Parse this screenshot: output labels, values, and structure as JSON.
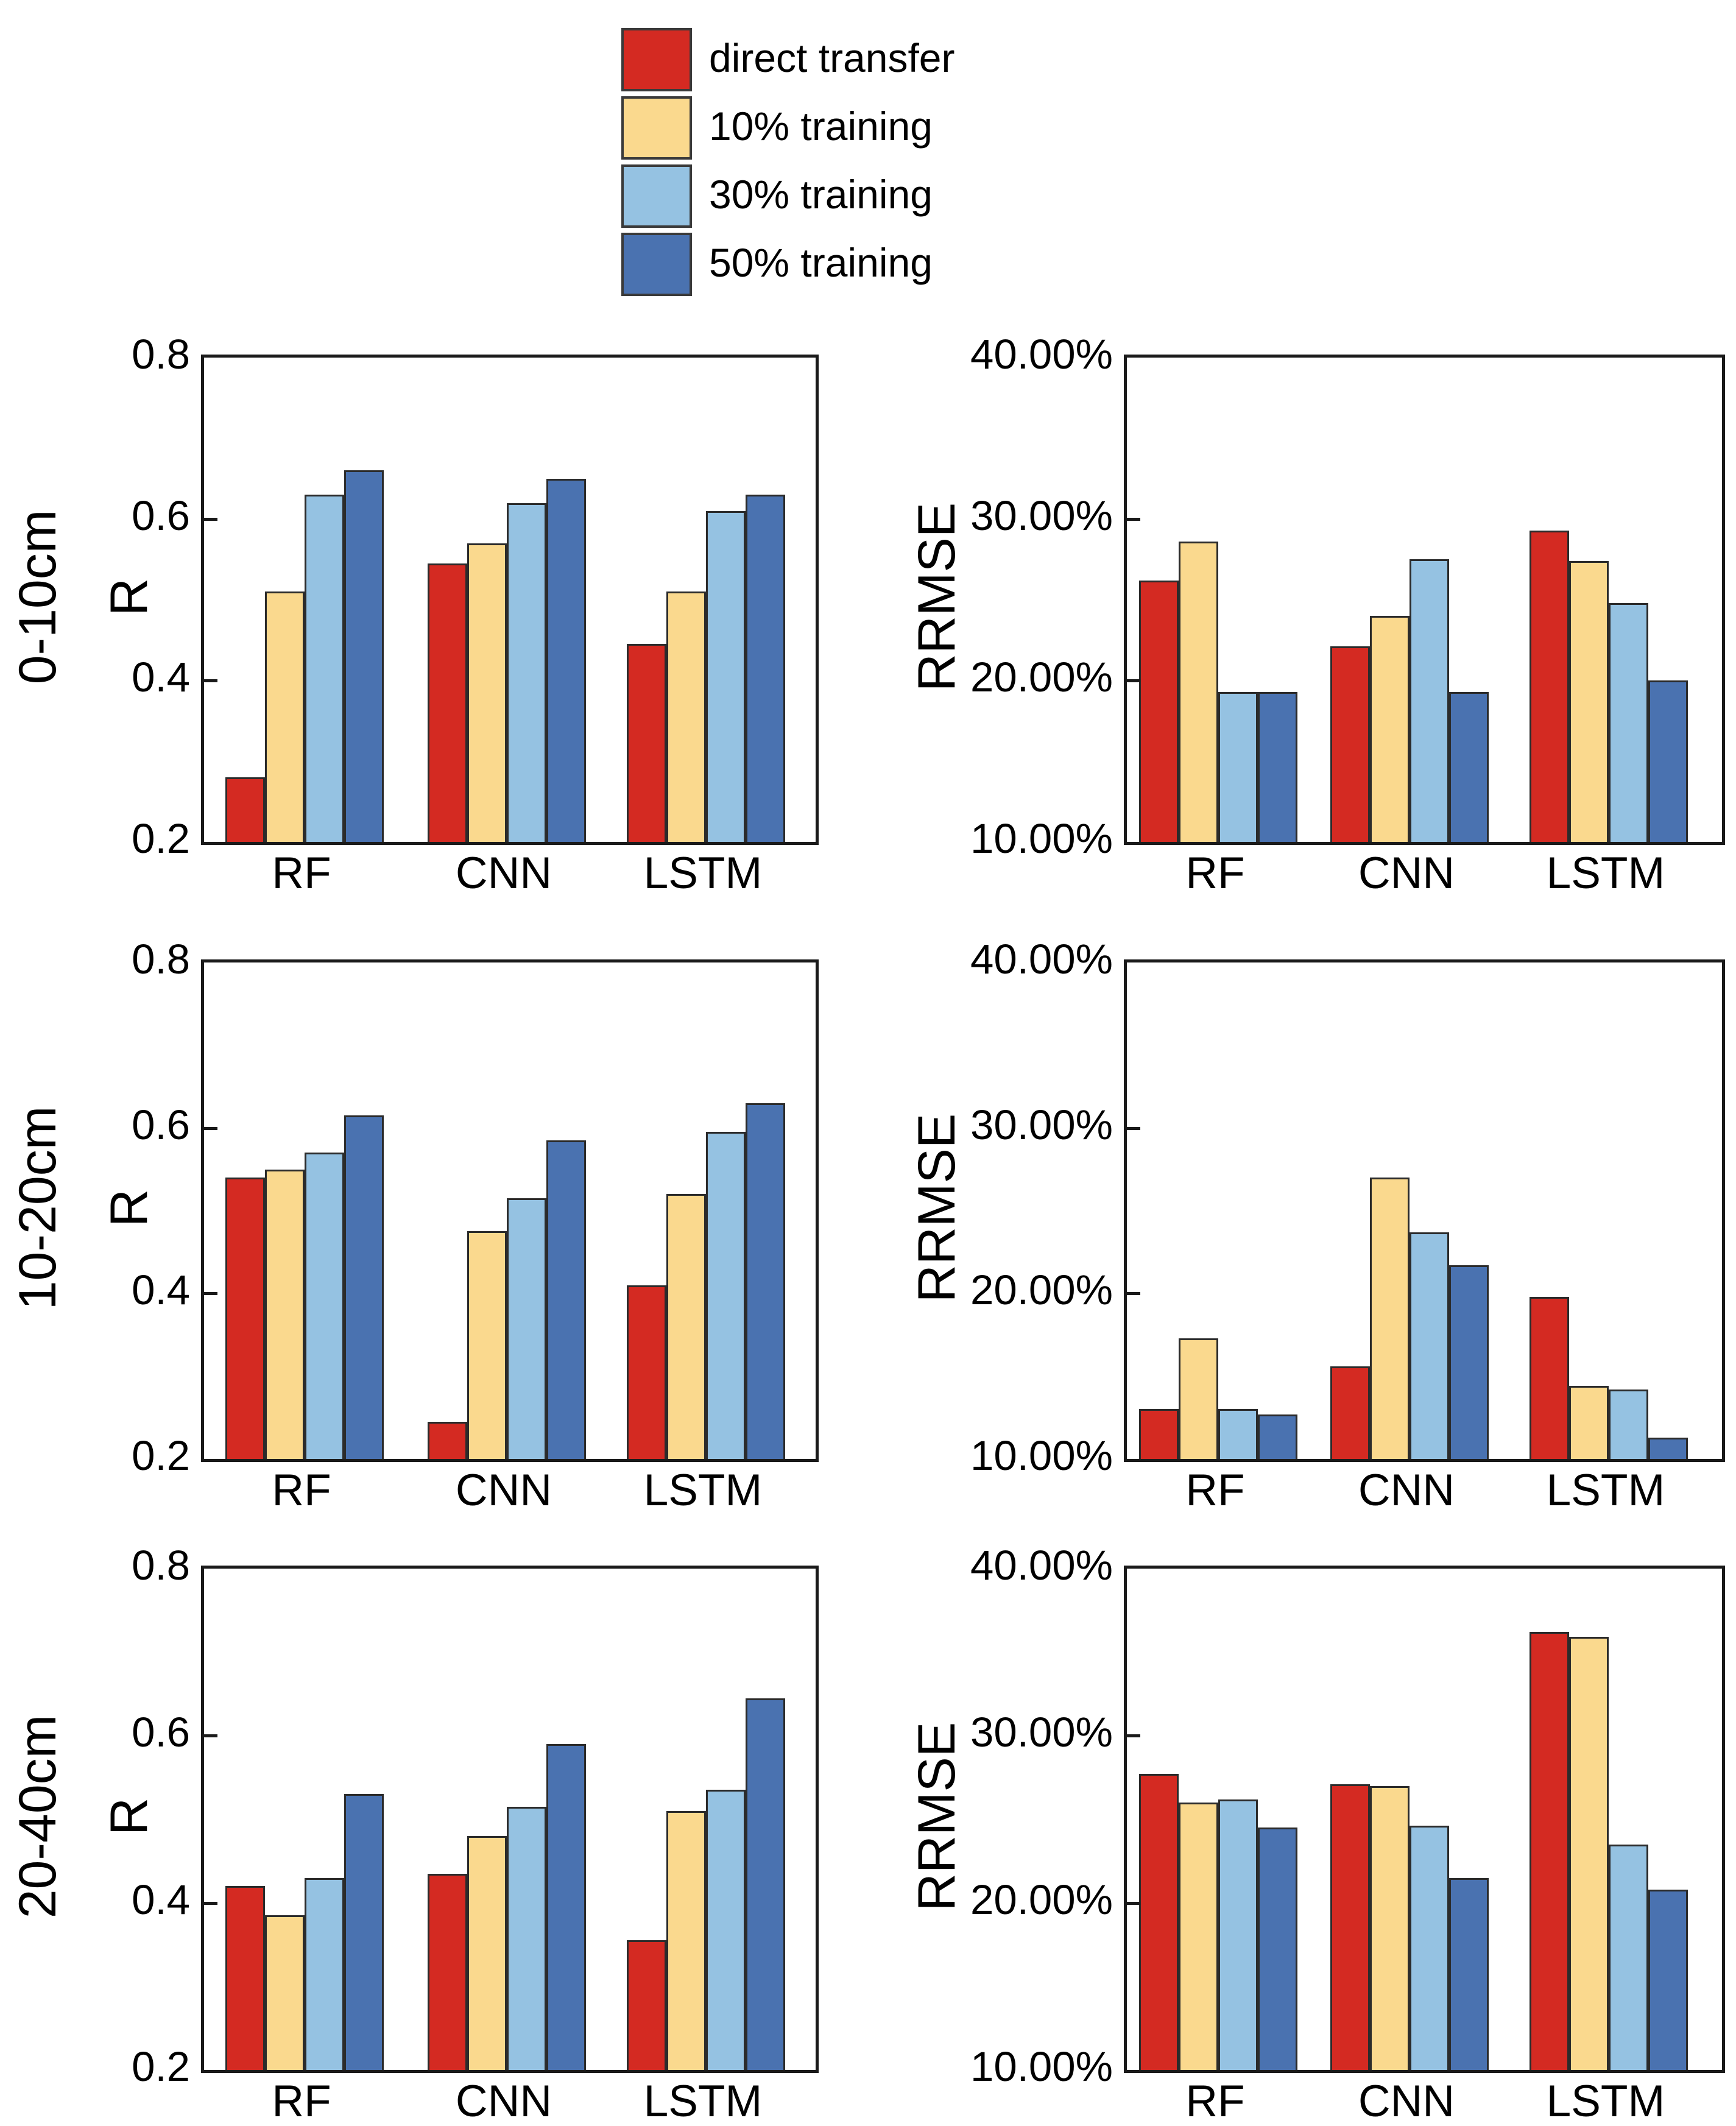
{
  "legend": {
    "items": [
      {
        "label": "direct transfer",
        "color": "#d42a22"
      },
      {
        "label": "10% training",
        "color": "#fad98e"
      },
      {
        "label": "30% training",
        "color": "#95c2e2"
      },
      {
        "label": "50% training",
        "color": "#4a72b0"
      }
    ]
  },
  "colors": {
    "direct_transfer": "#d42a22",
    "training_10": "#fad98e",
    "training_30": "#95c2e2",
    "training_50": "#4a72b0",
    "axis": "#1a1a1a",
    "bar_border": "#2b2b2b"
  },
  "chart_data": [
    {
      "id": "r-0-10cm",
      "type": "bar",
      "row": 0,
      "col": 0,
      "row_label": "0-10cm",
      "ylabel": "R",
      "xlabel": "",
      "ylim": [
        0.2,
        0.8
      ],
      "grid": false,
      "legend_position": "top",
      "yticks": [
        {
          "v": 0.8,
          "label": "0.8"
        },
        {
          "v": 0.6,
          "label": "0.6"
        },
        {
          "v": 0.4,
          "label": "0.4"
        },
        {
          "v": 0.2,
          "label": "0.2"
        }
      ],
      "categories": [
        "RF",
        "CNN",
        "LSTM"
      ],
      "series": [
        {
          "name": "direct transfer",
          "color": "#d42a22",
          "values": [
            0.28,
            0.545,
            0.445
          ]
        },
        {
          "name": "10% training",
          "color": "#fad98e",
          "values": [
            0.51,
            0.57,
            0.51
          ]
        },
        {
          "name": "30% training",
          "color": "#95c2e2",
          "values": [
            0.63,
            0.62,
            0.61
          ]
        },
        {
          "name": "50% training",
          "color": "#4a72b0",
          "values": [
            0.66,
            0.65,
            0.63
          ]
        }
      ]
    },
    {
      "id": "rrmse-0-10cm",
      "type": "bar",
      "row": 0,
      "col": 1,
      "row_label": null,
      "ylabel": "RRMSE",
      "xlabel": "",
      "ylim": [
        10,
        40
      ],
      "grid": false,
      "legend_position": "top",
      "yticks": [
        {
          "v": 40,
          "label": "40.00%"
        },
        {
          "v": 30,
          "label": "30.00%"
        },
        {
          "v": 20,
          "label": "20.00%"
        },
        {
          "v": 10,
          "label": "10.00%"
        }
      ],
      "categories": [
        "RF",
        "CNN",
        "LSTM"
      ],
      "series": [
        {
          "name": "direct transfer",
          "color": "#d42a22",
          "values": [
            26.2,
            22.1,
            29.3
          ]
        },
        {
          "name": "10% training",
          "color": "#fad98e",
          "values": [
            28.6,
            24.0,
            27.4
          ]
        },
        {
          "name": "30% training",
          "color": "#95c2e2",
          "values": [
            19.3,
            27.5,
            24.8
          ]
        },
        {
          "name": "50% training",
          "color": "#4a72b0",
          "values": [
            19.3,
            19.3,
            20.0
          ]
        }
      ]
    },
    {
      "id": "r-10-20cm",
      "type": "bar",
      "row": 1,
      "col": 0,
      "row_label": "10-20cm",
      "ylabel": "R",
      "xlabel": "",
      "ylim": [
        0.2,
        0.8
      ],
      "grid": false,
      "legend_position": "top",
      "yticks": [
        {
          "v": 0.8,
          "label": "0.8"
        },
        {
          "v": 0.6,
          "label": "0.6"
        },
        {
          "v": 0.4,
          "label": "0.4"
        },
        {
          "v": 0.2,
          "label": "0.2"
        }
      ],
      "categories": [
        "RF",
        "CNN",
        "LSTM"
      ],
      "series": [
        {
          "name": "direct transfer",
          "color": "#d42a22",
          "values": [
            0.54,
            0.245,
            0.41
          ]
        },
        {
          "name": "10% training",
          "color": "#fad98e",
          "values": [
            0.55,
            0.475,
            0.52
          ]
        },
        {
          "name": "30% training",
          "color": "#95c2e2",
          "values": [
            0.57,
            0.515,
            0.595
          ]
        },
        {
          "name": "50% training",
          "color": "#4a72b0",
          "values": [
            0.615,
            0.585,
            0.63
          ]
        }
      ]
    },
    {
      "id": "rrmse-10-20cm",
      "type": "bar",
      "row": 1,
      "col": 1,
      "row_label": null,
      "ylabel": "RRMSE",
      "xlabel": "",
      "ylim": [
        10,
        40
      ],
      "grid": false,
      "legend_position": "top",
      "yticks": [
        {
          "v": 40,
          "label": "40.00%"
        },
        {
          "v": 30,
          "label": "30.00%"
        },
        {
          "v": 20,
          "label": "20.00%"
        },
        {
          "v": 10,
          "label": "10.00%"
        }
      ],
      "categories": [
        "RF",
        "CNN",
        "LSTM"
      ],
      "series": [
        {
          "name": "direct transfer",
          "color": "#d42a22",
          "values": [
            13.0,
            15.6,
            19.8
          ]
        },
        {
          "name": "10% training",
          "color": "#fad98e",
          "values": [
            17.3,
            27.0,
            14.4
          ]
        },
        {
          "name": "30% training",
          "color": "#95c2e2",
          "values": [
            13.0,
            23.7,
            14.2
          ]
        },
        {
          "name": "50% training",
          "color": "#4a72b0",
          "values": [
            12.7,
            21.7,
            11.3
          ]
        }
      ]
    },
    {
      "id": "r-20-40cm",
      "type": "bar",
      "row": 2,
      "col": 0,
      "row_label": "20-40cm",
      "ylabel": "R",
      "xlabel": "",
      "ylim": [
        0.2,
        0.8
      ],
      "grid": false,
      "legend_position": "top",
      "yticks": [
        {
          "v": 0.8,
          "label": "0.8"
        },
        {
          "v": 0.6,
          "label": "0.6"
        },
        {
          "v": 0.4,
          "label": "0.4"
        },
        {
          "v": 0.2,
          "label": "0.2"
        }
      ],
      "categories": [
        "RF",
        "CNN",
        "LSTM"
      ],
      "series": [
        {
          "name": "direct transfer",
          "color": "#d42a22",
          "values": [
            0.42,
            0.435,
            0.355
          ]
        },
        {
          "name": "10% training",
          "color": "#fad98e",
          "values": [
            0.385,
            0.48,
            0.51
          ]
        },
        {
          "name": "30% training",
          "color": "#95c2e2",
          "values": [
            0.43,
            0.515,
            0.535
          ]
        },
        {
          "name": "50% training",
          "color": "#4a72b0",
          "values": [
            0.53,
            0.59,
            0.645
          ]
        }
      ]
    },
    {
      "id": "rrmse-20-40cm",
      "type": "bar",
      "row": 2,
      "col": 1,
      "row_label": null,
      "ylabel": "RRMSE",
      "xlabel": "",
      "ylim": [
        10,
        40
      ],
      "grid": false,
      "legend_position": "top",
      "yticks": [
        {
          "v": 40,
          "label": "40.00%"
        },
        {
          "v": 30,
          "label": "30.00%"
        },
        {
          "v": 20,
          "label": "20.00%"
        },
        {
          "v": 10,
          "label": "10.00%"
        }
      ],
      "categories": [
        "RF",
        "CNN",
        "LSTM"
      ],
      "series": [
        {
          "name": "direct transfer",
          "color": "#d42a22",
          "values": [
            27.7,
            27.1,
            36.2
          ]
        },
        {
          "name": "10% training",
          "color": "#fad98e",
          "values": [
            26.0,
            27.0,
            35.9
          ]
        },
        {
          "name": "30% training",
          "color": "#95c2e2",
          "values": [
            26.2,
            24.6,
            23.5
          ]
        },
        {
          "name": "50% training",
          "color": "#4a72b0",
          "values": [
            24.5,
            21.5,
            20.8
          ]
        }
      ]
    }
  ]
}
